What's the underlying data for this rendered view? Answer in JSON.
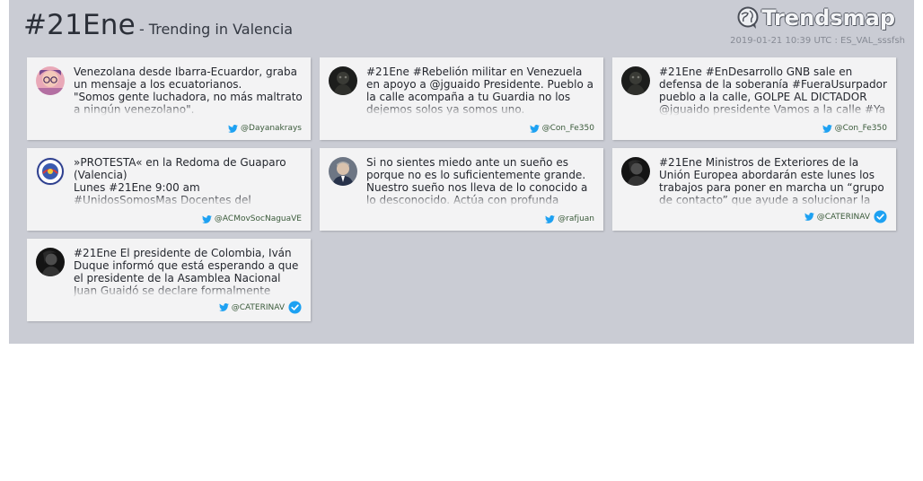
{
  "header": {
    "hashtag": "#21Ene",
    "subtitle": "- Trending in Valencia",
    "brand": "Trendsmap",
    "meta": "2019-01-21 10:39 UTC : ES_VAL_sssfsh"
  },
  "tweets": [
    {
      "text": "Venezolana desde Ibarra-Ecuardor, graba un mensaje a los ecuatorianos.\n\"Somos gente luchadora, no más maltrato a ningún venezolano\".",
      "handle": "@Dayanakrays",
      "verified": false
    },
    {
      "text": "#21Ene #Rebelión militar en Venezuela en apoyo a @jguaido Presidente. Pueblo a la calle acompaña a tu Guardia no los dejemos solos ya somos uno.",
      "handle": "@Con_Fe350",
      "verified": false
    },
    {
      "text": "#21Ene #EnDesarrollo GNB sale en defensa de la soberanía #FueraUsurpador pueblo a la calle, GOLPE AL DICTADOR @jguaido presidente Vamos a la calle #Ya",
      "handle": "@Con_Fe350",
      "verified": false
    },
    {
      "text": "»PROTESTA« en la Redoma de Guaparo (Valencia)\nLunes #21Ene 9:00 am\n#UnidosSomosMas Docentes del",
      "handle": "@ACMovSocNaguaVE",
      "verified": false
    },
    {
      "text": "Si no sientes miedo ante un sueño es porque no es lo suficientemente grande. Nuestro sueño nos lleva de lo conocido a lo desconocido. Actúa con profunda",
      "handle": "@rafjuan",
      "verified": false
    },
    {
      "text": "#21Ene Ministros de Exteriores de la Unión Europea abordarán este lunes los trabajos para poner en marcha un “grupo de contacto” que ayude a solucionar la",
      "handle": "@CATERINAV",
      "verified": true
    },
    {
      "text": "#21Ene El presidente de Colombia, Iván Duque informó que está esperando a que el presidente de la Asamblea Nacional Juan Guaidó se declare formalmente",
      "handle": "@CATERINAV",
      "verified": true
    }
  ],
  "colors": {
    "panel": "#caccd4",
    "card": "#f3f3f4",
    "twitter": "#1da1f2",
    "verified": "#1da1f2"
  }
}
